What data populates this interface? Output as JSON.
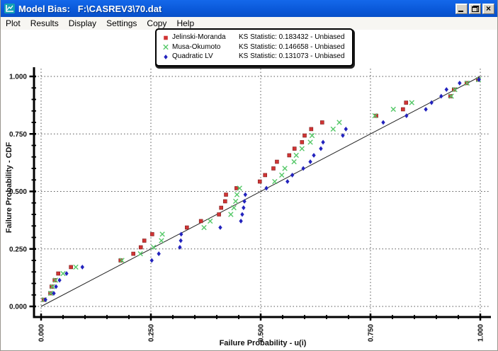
{
  "window": {
    "title": "Model Bias:   F:\\CASREV3\\70.dat",
    "close_glyph": "×",
    "icons": {
      "app": "model-bias-chart-icon",
      "minimize": "minimize-icon",
      "restore": "restore-icon",
      "close": "close-icon"
    }
  },
  "menu": {
    "items": [
      "Plot",
      "Results",
      "Display",
      "Settings",
      "Copy",
      "Help"
    ]
  },
  "legend": {
    "items": [
      {
        "name": "Jelinski-Moranda",
        "ks": "KS Statistic: 0.183432 - Unbiased",
        "marker": "square",
        "color": "#d03434"
      },
      {
        "name": "Musa-Okumoto",
        "ks": "KS Statistic: 0.146658 - Unbiased",
        "marker": "x",
        "color": "#55c868"
      },
      {
        "name": "Quadratic LV",
        "ks": "KS Statistic: 0.131073 - Unbiased",
        "marker": "diamond",
        "color": "#2323bd"
      }
    ]
  },
  "chart_data": {
    "type": "scatter",
    "title": "",
    "xlabel": "Failure Probability - u(i)",
    "ylabel": "Failure Probability - CDF",
    "xlim": [
      0,
      1
    ],
    "ylim": [
      0,
      1
    ],
    "xticks": [
      0,
      0.25,
      0.5,
      0.75,
      1.0
    ],
    "yticks": [
      0,
      0.25,
      0.5,
      0.75,
      1.0
    ],
    "tick_labels": [
      "0.000",
      "0.250",
      "0.500",
      "0.750",
      "1.000"
    ],
    "minor_tick_step": 0.05,
    "grid": "dotted",
    "legend_position": "top-center",
    "reference_line": {
      "from": [
        0,
        0
      ],
      "to": [
        1,
        1
      ]
    },
    "series": [
      {
        "name": "Jelinski-Moranda",
        "marker": "square",
        "color": "#d03434",
        "edge": "#7d1f1f",
        "points": [
          [
            0.006,
            0.029
          ],
          [
            0.021,
            0.057
          ],
          [
            0.024,
            0.086
          ],
          [
            0.031,
            0.114
          ],
          [
            0.039,
            0.143
          ],
          [
            0.068,
            0.171
          ],
          [
            0.181,
            0.2
          ],
          [
            0.21,
            0.229
          ],
          [
            0.227,
            0.257
          ],
          [
            0.235,
            0.286
          ],
          [
            0.253,
            0.314
          ],
          [
            0.332,
            0.343
          ],
          [
            0.364,
            0.371
          ],
          [
            0.405,
            0.4
          ],
          [
            0.41,
            0.429
          ],
          [
            0.419,
            0.457
          ],
          [
            0.421,
            0.486
          ],
          [
            0.445,
            0.514
          ],
          [
            0.498,
            0.543
          ],
          [
            0.51,
            0.571
          ],
          [
            0.529,
            0.6
          ],
          [
            0.537,
            0.629
          ],
          [
            0.565,
            0.657
          ],
          [
            0.577,
            0.686
          ],
          [
            0.594,
            0.714
          ],
          [
            0.6,
            0.743
          ],
          [
            0.615,
            0.771
          ],
          [
            0.64,
            0.8
          ],
          [
            0.763,
            0.829
          ],
          [
            0.824,
            0.857
          ],
          [
            0.831,
            0.886
          ],
          [
            0.932,
            0.914
          ],
          [
            0.94,
            0.943
          ],
          [
            0.969,
            0.971
          ],
          [
            0.995,
            0.986
          ]
        ]
      },
      {
        "name": "Musa-Okumoto",
        "marker": "x",
        "color": "#55c868",
        "edge": "#55c868",
        "points": [
          [
            0.007,
            0.029
          ],
          [
            0.022,
            0.057
          ],
          [
            0.026,
            0.086
          ],
          [
            0.033,
            0.114
          ],
          [
            0.05,
            0.143
          ],
          [
            0.079,
            0.171
          ],
          [
            0.184,
            0.2
          ],
          [
            0.226,
            0.229
          ],
          [
            0.256,
            0.257
          ],
          [
            0.274,
            0.286
          ],
          [
            0.276,
            0.314
          ],
          [
            0.371,
            0.343
          ],
          [
            0.385,
            0.371
          ],
          [
            0.432,
            0.4
          ],
          [
            0.439,
            0.429
          ],
          [
            0.443,
            0.457
          ],
          [
            0.446,
            0.486
          ],
          [
            0.452,
            0.514
          ],
          [
            0.532,
            0.543
          ],
          [
            0.548,
            0.571
          ],
          [
            0.555,
            0.6
          ],
          [
            0.576,
            0.629
          ],
          [
            0.581,
            0.657
          ],
          [
            0.594,
            0.686
          ],
          [
            0.613,
            0.714
          ],
          [
            0.617,
            0.743
          ],
          [
            0.665,
            0.771
          ],
          [
            0.679,
            0.8
          ],
          [
            0.76,
            0.829
          ],
          [
            0.802,
            0.857
          ],
          [
            0.844,
            0.886
          ],
          [
            0.934,
            0.914
          ],
          [
            0.942,
            0.943
          ],
          [
            0.97,
            0.971
          ],
          [
            0.996,
            0.986
          ]
        ]
      },
      {
        "name": "Quadratic LV",
        "marker": "diamond",
        "color": "#2323bd",
        "edge": "#15157a",
        "points": [
          [
            0.01,
            0.029
          ],
          [
            0.029,
            0.057
          ],
          [
            0.034,
            0.086
          ],
          [
            0.042,
            0.114
          ],
          [
            0.058,
            0.143
          ],
          [
            0.094,
            0.171
          ],
          [
            0.252,
            0.2
          ],
          [
            0.268,
            0.229
          ],
          [
            0.316,
            0.257
          ],
          [
            0.318,
            0.286
          ],
          [
            0.319,
            0.314
          ],
          [
            0.408,
            0.343
          ],
          [
            0.455,
            0.371
          ],
          [
            0.458,
            0.4
          ],
          [
            0.461,
            0.429
          ],
          [
            0.463,
            0.457
          ],
          [
            0.465,
            0.486
          ],
          [
            0.513,
            0.514
          ],
          [
            0.561,
            0.543
          ],
          [
            0.572,
            0.571
          ],
          [
            0.597,
            0.6
          ],
          [
            0.613,
            0.629
          ],
          [
            0.621,
            0.657
          ],
          [
            0.637,
            0.686
          ],
          [
            0.642,
            0.714
          ],
          [
            0.687,
            0.743
          ],
          [
            0.694,
            0.771
          ],
          [
            0.779,
            0.8
          ],
          [
            0.832,
            0.829
          ],
          [
            0.876,
            0.857
          ],
          [
            0.889,
            0.886
          ],
          [
            0.911,
            0.914
          ],
          [
            0.923,
            0.943
          ],
          [
            0.953,
            0.971
          ],
          [
            0.997,
            0.986
          ]
        ]
      }
    ]
  }
}
